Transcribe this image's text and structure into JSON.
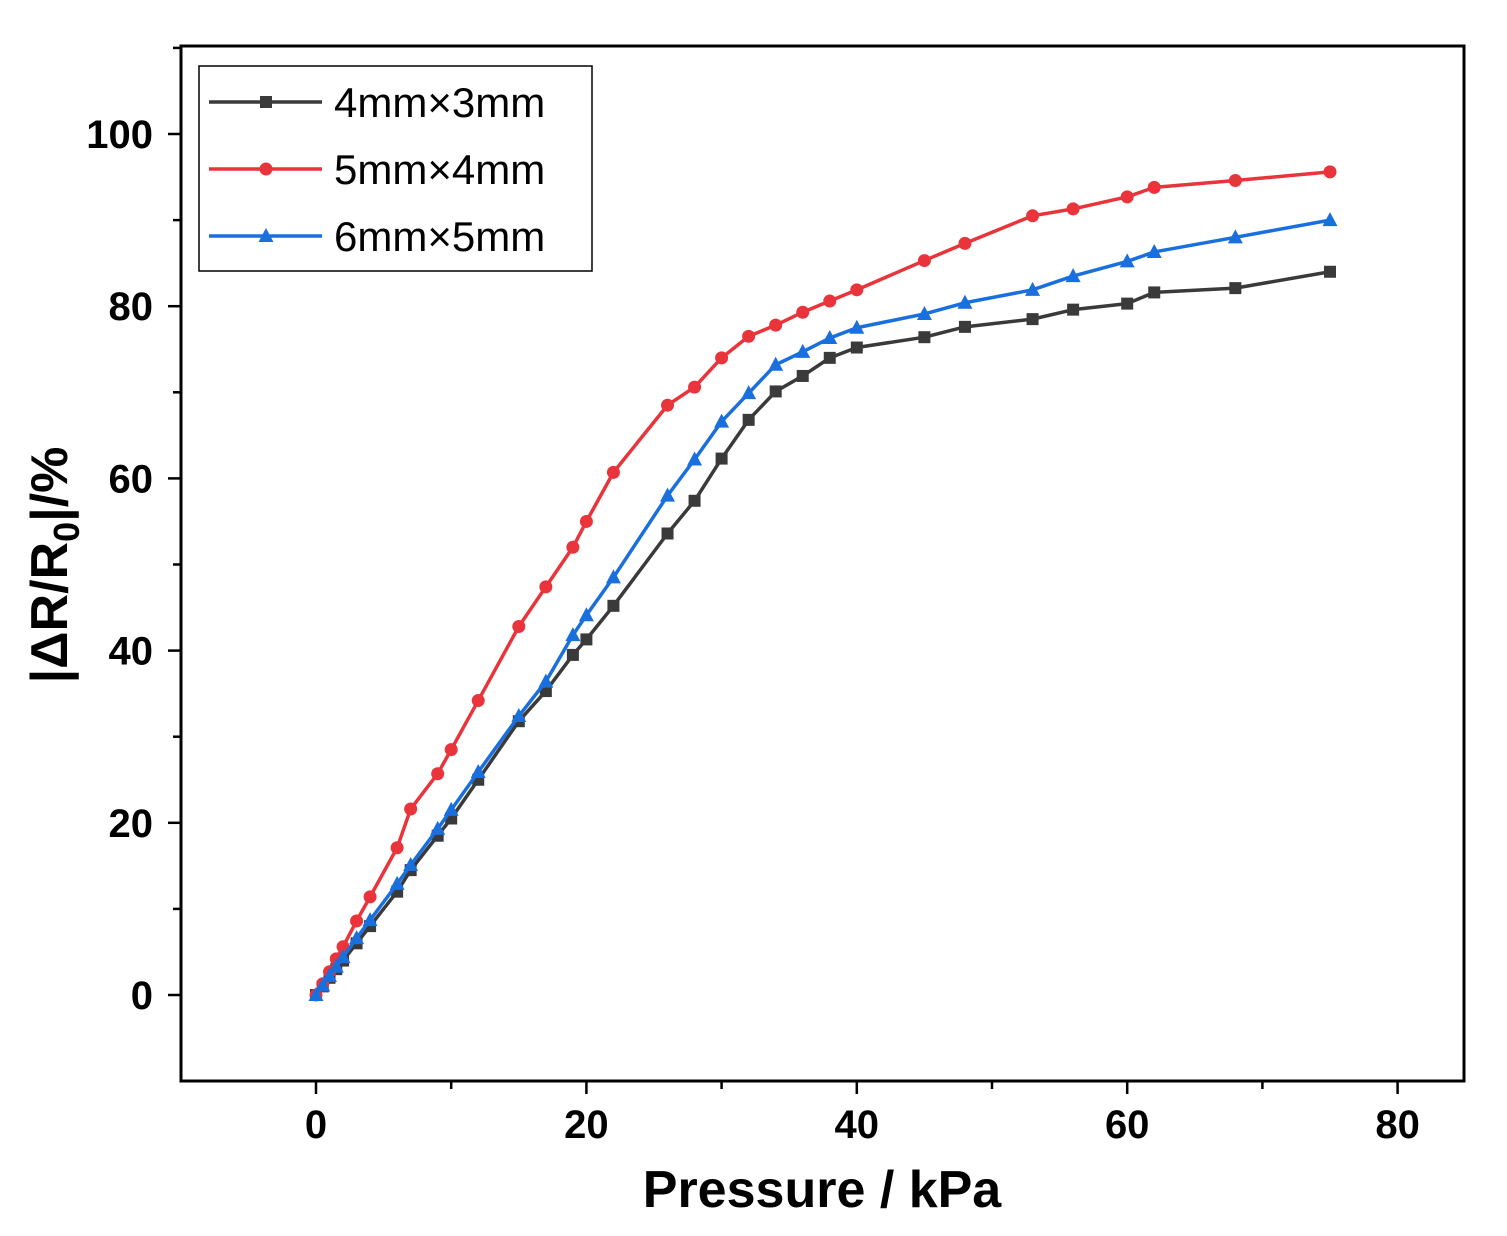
{
  "chart_data": {
    "type": "line",
    "xlabel": "Pressure / kPa",
    "ylabel": {
      "main": "|ΔR/R",
      "sub": "0",
      "tail": "|/%"
    },
    "xlim": [
      -10,
      85
    ],
    "ylim": [
      -10,
      110
    ],
    "xticks": [
      0,
      20,
      40,
      60,
      80
    ],
    "yticks": [
      0,
      20,
      40,
      60,
      80,
      100
    ],
    "legend_position": "top-left",
    "series": [
      {
        "name": "4mm×3mm",
        "color": "#3a3a3a",
        "marker": "square",
        "x": [
          0,
          0.5,
          1,
          1.5,
          2,
          3,
          4,
          6,
          7,
          9,
          10,
          12,
          15,
          17,
          19,
          20,
          22,
          26,
          28,
          30,
          32,
          34,
          36,
          38,
          40,
          45,
          48,
          53,
          56,
          60,
          62,
          68,
          75
        ],
        "y": [
          0,
          1,
          2,
          3,
          4,
          6,
          8,
          12,
          14.5,
          18.5,
          20.5,
          25,
          31.8,
          35.3,
          39.5,
          41.3,
          45.2,
          53.6,
          57.4,
          62.3,
          66.8,
          70.1,
          71.9,
          74,
          75.2,
          76.4,
          77.6,
          78.5,
          79.6,
          80.3,
          81.6,
          82.1,
          84
        ]
      },
      {
        "name": "5mm×4mm",
        "color": "#e8343a",
        "marker": "circle",
        "x": [
          0,
          0.5,
          1,
          1.5,
          2,
          3,
          4,
          6,
          7,
          9,
          10,
          12,
          15,
          17,
          19,
          20,
          22,
          26,
          28,
          30,
          32,
          34,
          36,
          38,
          40,
          45,
          48,
          53,
          56,
          60,
          62,
          68,
          75
        ],
        "y": [
          0,
          1.3,
          2.7,
          4.2,
          5.6,
          8.6,
          11.4,
          17.1,
          21.6,
          25.7,
          28.5,
          34.2,
          42.8,
          47.4,
          52,
          55,
          60.7,
          68.5,
          70.6,
          74,
          76.5,
          77.8,
          79.3,
          80.6,
          81.9,
          85.3,
          87.3,
          90.5,
          91.3,
          92.7,
          93.8,
          94.6,
          95.6
        ]
      },
      {
        "name": "6mm×5mm",
        "color": "#1a6fdf",
        "marker": "triangle",
        "x": [
          0,
          0.5,
          1,
          1.5,
          2,
          3,
          4,
          6,
          7,
          9,
          10,
          12,
          15,
          17,
          19,
          20,
          22,
          26,
          28,
          30,
          32,
          34,
          36,
          38,
          40,
          45,
          48,
          53,
          56,
          60,
          62,
          68,
          75
        ],
        "y": [
          0,
          1.1,
          2.2,
          3.3,
          4.4,
          6.6,
          8.7,
          12.9,
          15.1,
          19.3,
          21.5,
          25.9,
          32.4,
          36.4,
          41.8,
          44.1,
          48.5,
          58,
          62.2,
          66.6,
          69.9,
          73.2,
          74.7,
          76.3,
          77.5,
          79.1,
          80.4,
          81.9,
          83.5,
          85.2,
          86.3,
          88,
          90
        ]
      }
    ]
  }
}
